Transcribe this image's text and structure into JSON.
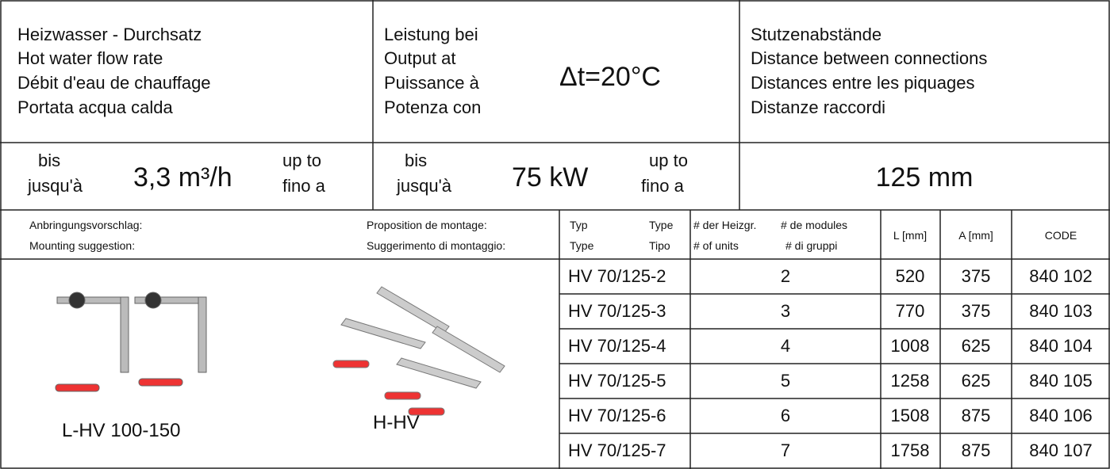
{
  "header": {
    "flow": [
      "Heizwasser - Durchsatz",
      "Hot water flow rate",
      "Débit d'eau de chauffage",
      "Portata acqua calda"
    ],
    "output": [
      "Leistung bei",
      "Output at",
      "Puissance à",
      "Potenza con"
    ],
    "delta": "Δt=20°C",
    "distance": [
      "Stutzenabstände",
      "Distance between connections",
      "Distances entre les piquages",
      "Distanze raccordi"
    ]
  },
  "specs": {
    "flow": {
      "bis": "bis",
      "jusqua": "jusqu'à",
      "value": "3,3 m³/h",
      "upto": "up to",
      "finoa": "fino a"
    },
    "output": {
      "bis": "bis",
      "jusqua": "jusqu'à",
      "value": "75 kW",
      "upto": "up to",
      "finoa": "fino a"
    },
    "distance": "125 mm"
  },
  "mounting": {
    "de": "Anbringungsvorschlag:",
    "en": "Mounting suggestion:",
    "fr": "Proposition de montage:",
    "it": "Suggerimento di montaggio:"
  },
  "table": {
    "header": {
      "typ": "Typ",
      "type_en": "Type",
      "type_fr": "Type",
      "tipo": "Tipo",
      "units_de": "# der Heizgr.",
      "units_fr": "# de modules",
      "units_en": "# of units",
      "units_it": "# di gruppi",
      "l": "L [mm]",
      "a": "A [mm]",
      "code": "CODE"
    },
    "rows": [
      [
        "HV 70/125-2",
        2,
        520,
        375,
        "840 102"
      ],
      [
        "HV 70/125-3",
        3,
        770,
        375,
        "840 103"
      ],
      [
        "HV 70/125-4",
        4,
        1008,
        625,
        "840 104"
      ],
      [
        "HV 70/125-5",
        5,
        1258,
        625,
        "840 105"
      ],
      [
        "HV 70/125-6",
        6,
        1508,
        875,
        "840 106"
      ],
      [
        "HV 70/125-7",
        7,
        1758,
        875,
        "840 107"
      ]
    ]
  },
  "products": [
    "L-HV 100-150",
    "H-HV"
  ]
}
